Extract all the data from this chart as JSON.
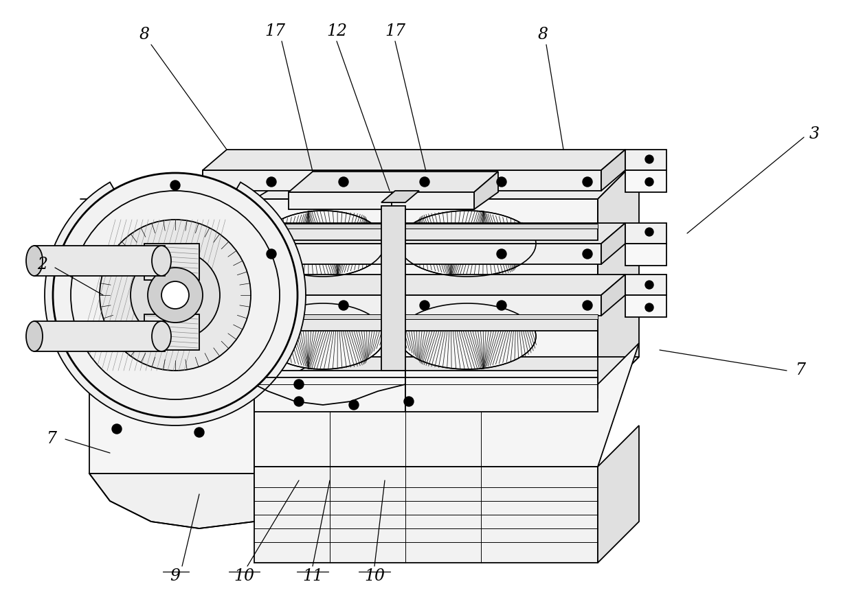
{
  "background_color": "#ffffff",
  "line_color": "#000000",
  "figsize": [
    12.4,
    8.67
  ],
  "dpi": 100,
  "label_fontsize": 17,
  "label_style": "italic",
  "lw_main": 1.3,
  "lw_thin": 0.7,
  "lw_thick": 2.0,
  "gray_light": "#f0f0f0",
  "gray_mid": "#d8d8d8",
  "gray_dark": "#b0b0b0",
  "white": "#ffffff"
}
